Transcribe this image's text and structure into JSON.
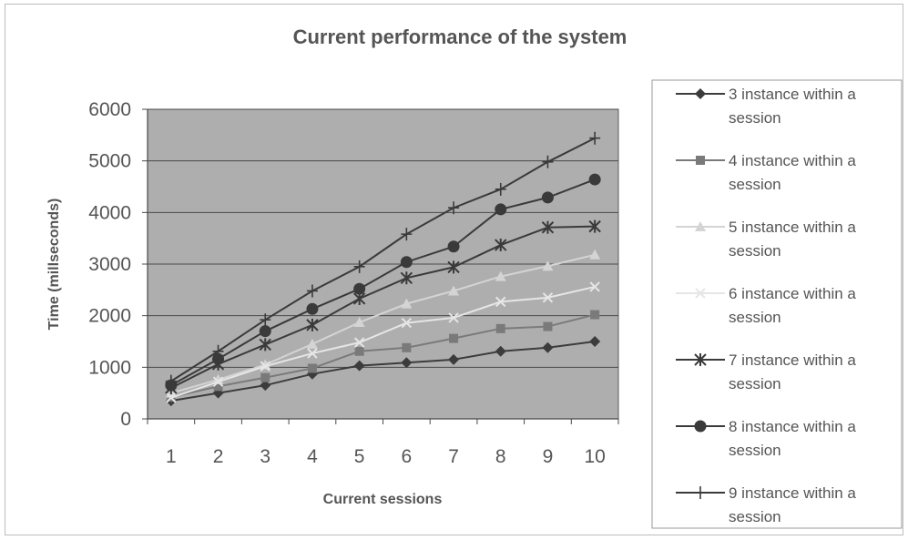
{
  "chart_data": {
    "type": "line",
    "title": "Current performance of the system",
    "xlabel": "Current sessions",
    "ylabel": "Time (millseconds)",
    "x": [
      1,
      2,
      3,
      4,
      5,
      6,
      7,
      8,
      9,
      10
    ],
    "ylim": [
      0,
      6000
    ],
    "yticks": [
      0,
      1000,
      2000,
      3000,
      4000,
      5000,
      6000
    ],
    "grid": true,
    "legend": "right",
    "series": [
      {
        "name": "3 instance within a session",
        "marker": "diamond",
        "color": "#3c3c3c",
        "values": [
          350,
          500,
          650,
          870,
          1030,
          1090,
          1150,
          1310,
          1380,
          1500
        ]
      },
      {
        "name": "4 instance within a session",
        "marker": "square",
        "color": "#7a7a7a",
        "values": [
          420,
          630,
          800,
          980,
          1310,
          1380,
          1560,
          1750,
          1790,
          2020
        ]
      },
      {
        "name": "5 instance within a session",
        "marker": "triangle",
        "color": "#d4d4d4",
        "values": [
          500,
          760,
          1050,
          1450,
          1870,
          2230,
          2480,
          2760,
          2960,
          3180
        ]
      },
      {
        "name": "6 instance within a session",
        "marker": "x",
        "color": "#e6e6e6",
        "values": [
          410,
          720,
          1020,
          1270,
          1480,
          1860,
          1960,
          2270,
          2350,
          2560
        ]
      },
      {
        "name": "7 instance within a session",
        "marker": "star",
        "color": "#3a3a3a",
        "values": [
          600,
          1060,
          1440,
          1820,
          2330,
          2730,
          2940,
          3370,
          3710,
          3730
        ]
      },
      {
        "name": "8 instance within a session",
        "marker": "circle",
        "color": "#3a3a3a",
        "values": [
          650,
          1160,
          1700,
          2130,
          2520,
          3040,
          3340,
          4060,
          4290,
          4640
        ]
      },
      {
        "name": "9 instance within a session",
        "marker": "plus",
        "color": "#3a3a3a",
        "values": [
          730,
          1310,
          1920,
          2480,
          2950,
          3580,
          4090,
          4450,
          4980,
          5440
        ]
      }
    ]
  }
}
